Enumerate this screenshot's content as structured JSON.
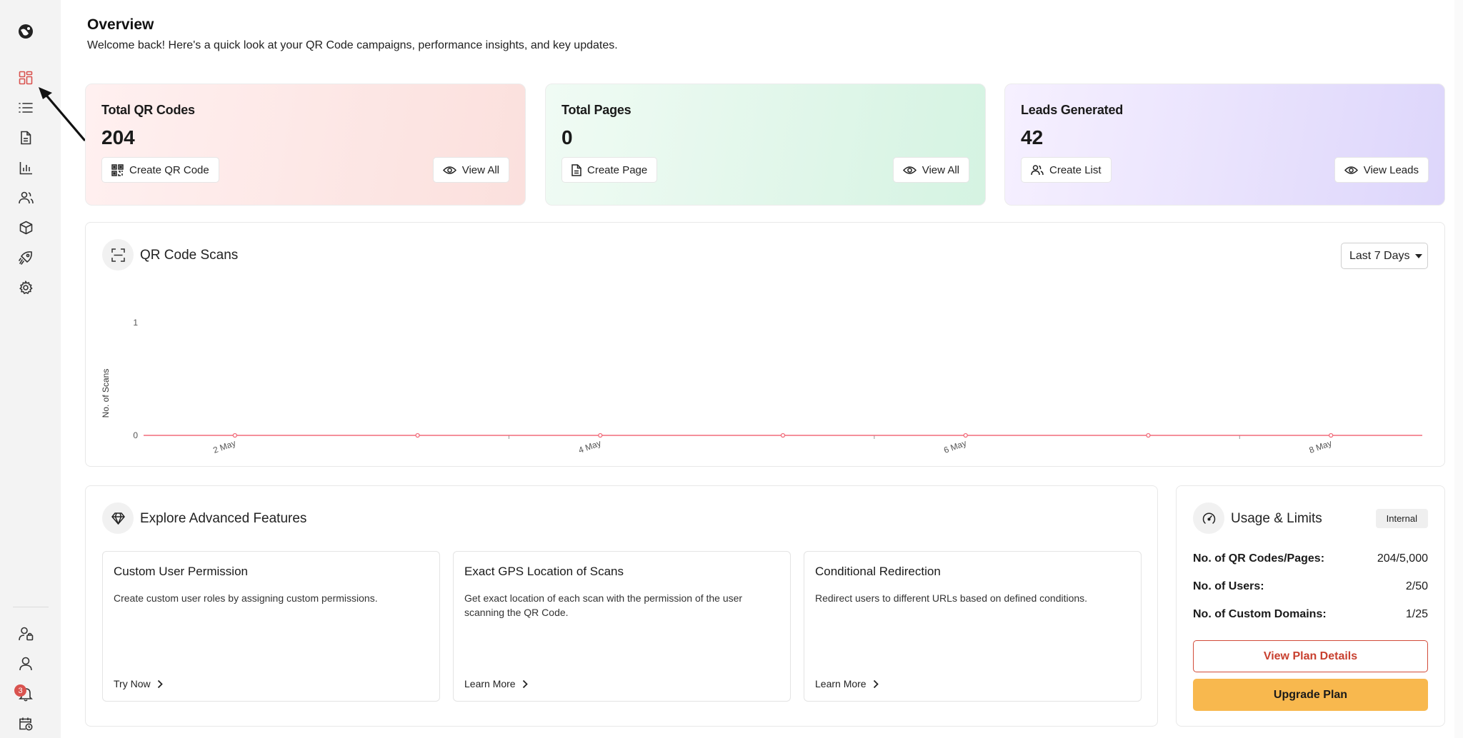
{
  "header": {
    "title": "Overview",
    "subtitle": "Welcome back! Here's a quick look at your QR Code campaigns, performance insights, and key updates."
  },
  "sidebar": {
    "top_items": [
      {
        "name": "logo",
        "icon": "globe-logo-icon"
      },
      {
        "name": "dashboard",
        "icon": "grid-icon",
        "active": true
      },
      {
        "name": "qr-codes",
        "icon": "list-icon"
      },
      {
        "name": "pages",
        "icon": "document-icon"
      },
      {
        "name": "analytics",
        "icon": "bar-chart-icon"
      },
      {
        "name": "leads",
        "icon": "users-icon"
      },
      {
        "name": "integrations",
        "icon": "cube-icon"
      },
      {
        "name": "marketing",
        "icon": "rocket-icon"
      },
      {
        "name": "settings",
        "icon": "gear-icon"
      }
    ],
    "bottom_items": [
      {
        "name": "team",
        "icon": "user-settings-icon"
      },
      {
        "name": "profile",
        "icon": "user-icon"
      },
      {
        "name": "notifications",
        "icon": "bell-icon",
        "badge": "3"
      },
      {
        "name": "schedule",
        "icon": "calendar-clock-icon"
      }
    ],
    "accent_color": "#d9534f"
  },
  "stats": {
    "qr": {
      "title": "Total QR Codes",
      "value": "204",
      "primary_action": "Create QR Code",
      "secondary_action": "View All"
    },
    "pages": {
      "title": "Total Pages",
      "value": "0",
      "primary_action": "Create Page",
      "secondary_action": "View All"
    },
    "leads": {
      "title": "Leads Generated",
      "value": "42",
      "primary_action": "Create List",
      "secondary_action": "View Leads"
    }
  },
  "scans": {
    "title": "QR Code Scans",
    "range": "Last 7 Days"
  },
  "chart_data": {
    "type": "line",
    "title": "QR Code Scans",
    "xlabel": "",
    "ylabel": "No. of Scans",
    "x": [
      "2 May",
      "3 May",
      "4 May",
      "5 May",
      "6 May",
      "7 May",
      "8 May"
    ],
    "x_tick_labels": [
      "2 May",
      "4 May",
      "6 May",
      "8 May"
    ],
    "y_tick_labels": [
      "0",
      "1"
    ],
    "ylim": [
      0,
      1
    ],
    "series": [
      {
        "values": [
          0,
          0,
          0,
          0,
          0,
          0,
          0
        ],
        "color": "#f26b7a"
      }
    ],
    "grid": false,
    "legend": "none"
  },
  "features": {
    "title": "Explore Advanced Features",
    "items": [
      {
        "title": "Custom User Permission",
        "desc": "Create custom user roles by assigning custom permissions.",
        "link": "Try Now"
      },
      {
        "title": "Exact GPS Location of Scans",
        "desc": "Get exact location of each scan with the permission of the user scanning the QR Code.",
        "link": "Learn More"
      },
      {
        "title": "Conditional Redirection",
        "desc": "Redirect users to different URLs based on defined conditions.",
        "link": "Learn More"
      }
    ]
  },
  "usage": {
    "title": "Usage & Limits",
    "badge": "Internal",
    "rows": [
      {
        "label": "No. of QR Codes/Pages:",
        "value": "204/5,000"
      },
      {
        "label": "No. of Users:",
        "value": "2/50"
      },
      {
        "label": "No. of Custom Domains:",
        "value": "1/25"
      }
    ],
    "details_button": "View Plan Details",
    "upgrade_button": "Upgrade Plan",
    "upgrade_color": "#f8b84e"
  }
}
